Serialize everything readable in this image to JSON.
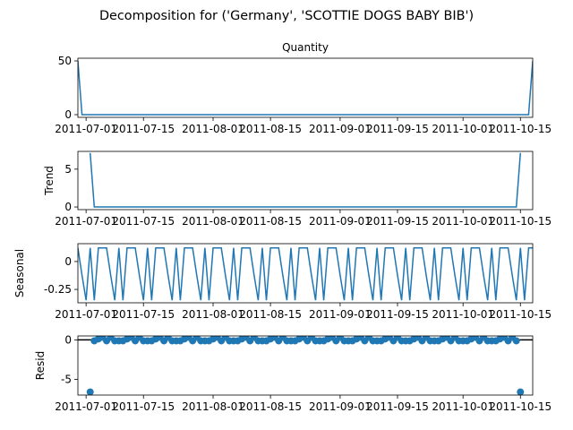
{
  "figure": {
    "suptitle": "Decomposition for ('Germany', 'SCOTTIE DOGS BABY BIB')"
  },
  "chart_data": [
    {
      "type": "line",
      "panel": "observed",
      "title": "Quantity",
      "ylabel": "",
      "xlim": [
        "2011-06-29",
        "2011-10-18"
      ],
      "ylim": [
        -2.5,
        52.5
      ],
      "yticks": [
        0,
        50
      ],
      "x_tick_labels": [
        "2011-07-01",
        "2011-07-15",
        "2011-08-01",
        "2011-08-15",
        "2011-09-01",
        "2011-09-15",
        "2011-10-01",
        "2011-10-15"
      ],
      "series": [
        {
          "points": [
            [
              "2011-06-29",
              50
            ],
            [
              "2011-06-30",
              0
            ],
            [
              "2011-10-17",
              0
            ],
            [
              "2011-10-18",
              50
            ]
          ]
        }
      ]
    },
    {
      "type": "line",
      "panel": "trend",
      "title": "",
      "ylabel": "Trend",
      "xlim": [
        "2011-06-29",
        "2011-10-18"
      ],
      "ylim": [
        -0.35,
        7.35
      ],
      "yticks": [
        0,
        5
      ],
      "x_tick_labels": [
        "2011-07-01",
        "2011-07-15",
        "2011-08-01",
        "2011-08-15",
        "2011-09-01",
        "2011-09-15",
        "2011-10-01",
        "2011-10-15"
      ],
      "series": [
        {
          "points": [
            [
              "2011-07-02",
              7.14
            ],
            [
              "2011-07-03",
              0
            ],
            [
              "2011-10-14",
              0
            ],
            [
              "2011-10-15",
              7.14
            ]
          ]
        }
      ]
    },
    {
      "type": "line",
      "panel": "seasonal",
      "title": "",
      "ylabel": "Seasonal",
      "xlim": [
        "2011-06-29",
        "2011-10-18"
      ],
      "ylim": [
        -0.37,
        0.16
      ],
      "yticks": [
        0.0,
        -0.25
      ],
      "x_tick_labels": [
        "2011-07-01",
        "2011-07-15",
        "2011-08-01",
        "2011-08-15",
        "2011-09-01",
        "2011-09-15",
        "2011-10-01",
        "2011-10-15"
      ],
      "period_days": 7,
      "weekly_pattern": [
        0.122,
        -0.122,
        -0.347,
        0.122,
        -0.347,
        0.122,
        0.122
      ],
      "start_date": "2011-06-29",
      "end_date": "2011-10-18"
    },
    {
      "type": "scatter",
      "panel": "residual",
      "title": "",
      "ylabel": "Resid",
      "xlim": [
        "2011-06-29",
        "2011-10-18"
      ],
      "ylim": [
        -7.0,
        0.5
      ],
      "yticks": [
        0,
        -5
      ],
      "x_tick_labels": [
        "2011-07-01",
        "2011-07-15",
        "2011-08-01",
        "2011-08-15",
        "2011-09-01",
        "2011-09-15",
        "2011-10-01",
        "2011-10-15"
      ],
      "baseline": 0,
      "outliers": [
        [
          "2011-07-02",
          -6.61
        ],
        [
          "2011-10-15",
          -6.61
        ]
      ],
      "regular_range": [
        "2011-07-03",
        "2011-10-14"
      ],
      "regular_weekly_resid": [
        -0.12,
        0.12,
        0.35,
        -0.12,
        0.35,
        -0.12,
        -0.12
      ]
    }
  ],
  "colors": {
    "line": "#1f77b4",
    "axis": "#000000"
  }
}
